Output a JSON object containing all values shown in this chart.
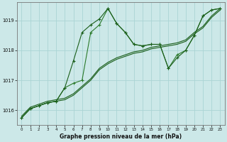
{
  "xlabel": "Graphe pression niveau de la mer (hPa)",
  "bg_color": "#cce8e8",
  "grid_color": "#aad4d4",
  "line_color_dark": "#1a5e1a",
  "line_color_mid": "#2a7a2a",
  "xlim_min": -0.5,
  "xlim_max": 23.5,
  "ylim_min": 1015.5,
  "ylim_max": 1019.6,
  "yticks": [
    1016,
    1017,
    1018,
    1019
  ],
  "xticks": [
    0,
    1,
    2,
    3,
    4,
    5,
    6,
    7,
    8,
    9,
    10,
    11,
    12,
    13,
    14,
    15,
    16,
    17,
    18,
    19,
    20,
    21,
    22,
    23
  ],
  "line1_x": [
    0,
    1,
    2,
    3,
    4,
    5,
    6,
    7,
    8,
    9,
    10,
    11,
    12,
    13,
    14,
    15,
    16,
    17,
    18,
    19,
    20,
    21,
    22,
    23
  ],
  "line1_y": [
    1015.75,
    1016.05,
    1016.15,
    1016.25,
    1016.3,
    1016.35,
    1016.5,
    1016.75,
    1017.0,
    1017.35,
    1017.55,
    1017.7,
    1017.8,
    1017.9,
    1017.95,
    1018.05,
    1018.1,
    1018.15,
    1018.2,
    1018.3,
    1018.55,
    1018.75,
    1019.1,
    1019.35
  ],
  "line2_x": [
    0,
    1,
    2,
    3,
    4,
    5,
    6,
    7,
    8,
    9,
    10,
    11,
    12,
    13,
    14,
    15,
    16,
    17,
    18,
    19,
    20,
    21,
    22,
    23
  ],
  "line2_y": [
    1015.75,
    1016.05,
    1016.15,
    1016.25,
    1016.3,
    1016.35,
    1016.5,
    1016.75,
    1017.0,
    1017.35,
    1017.55,
    1017.7,
    1017.8,
    1017.9,
    1017.95,
    1018.05,
    1018.1,
    1018.15,
    1018.2,
    1018.3,
    1018.55,
    1018.75,
    1019.1,
    1019.35
  ],
  "line3_x": [
    0,
    1,
    2,
    3,
    4,
    5,
    6,
    7,
    8,
    9,
    10,
    11,
    12,
    13,
    14,
    15,
    16,
    17,
    18,
    19,
    20,
    21,
    22,
    23
  ],
  "line3_y": [
    1015.75,
    1016.05,
    1016.15,
    1016.25,
    1016.3,
    1016.75,
    1017.65,
    1018.6,
    1018.85,
    1019.05,
    1019.4,
    1018.9,
    1018.6,
    1018.2,
    1018.15,
    1018.2,
    1018.2,
    1017.4,
    1017.75,
    1018.0,
    1018.5,
    1019.15,
    1019.35,
    1019.4
  ],
  "line4_x": [
    0,
    1,
    2,
    3,
    4,
    5,
    6,
    7,
    8,
    9,
    10,
    11,
    12,
    13,
    14,
    15,
    16,
    17,
    18,
    19,
    20,
    21,
    22,
    23
  ],
  "line4_y": [
    1015.75,
    1016.05,
    1016.15,
    1016.25,
    1016.3,
    1016.75,
    1016.9,
    1017.0,
    1018.6,
    1018.85,
    1019.4,
    1018.9,
    1018.6,
    1018.2,
    1018.15,
    1018.2,
    1018.2,
    1017.4,
    1017.85,
    1018.0,
    1018.5,
    1019.15,
    1019.35,
    1019.4
  ]
}
